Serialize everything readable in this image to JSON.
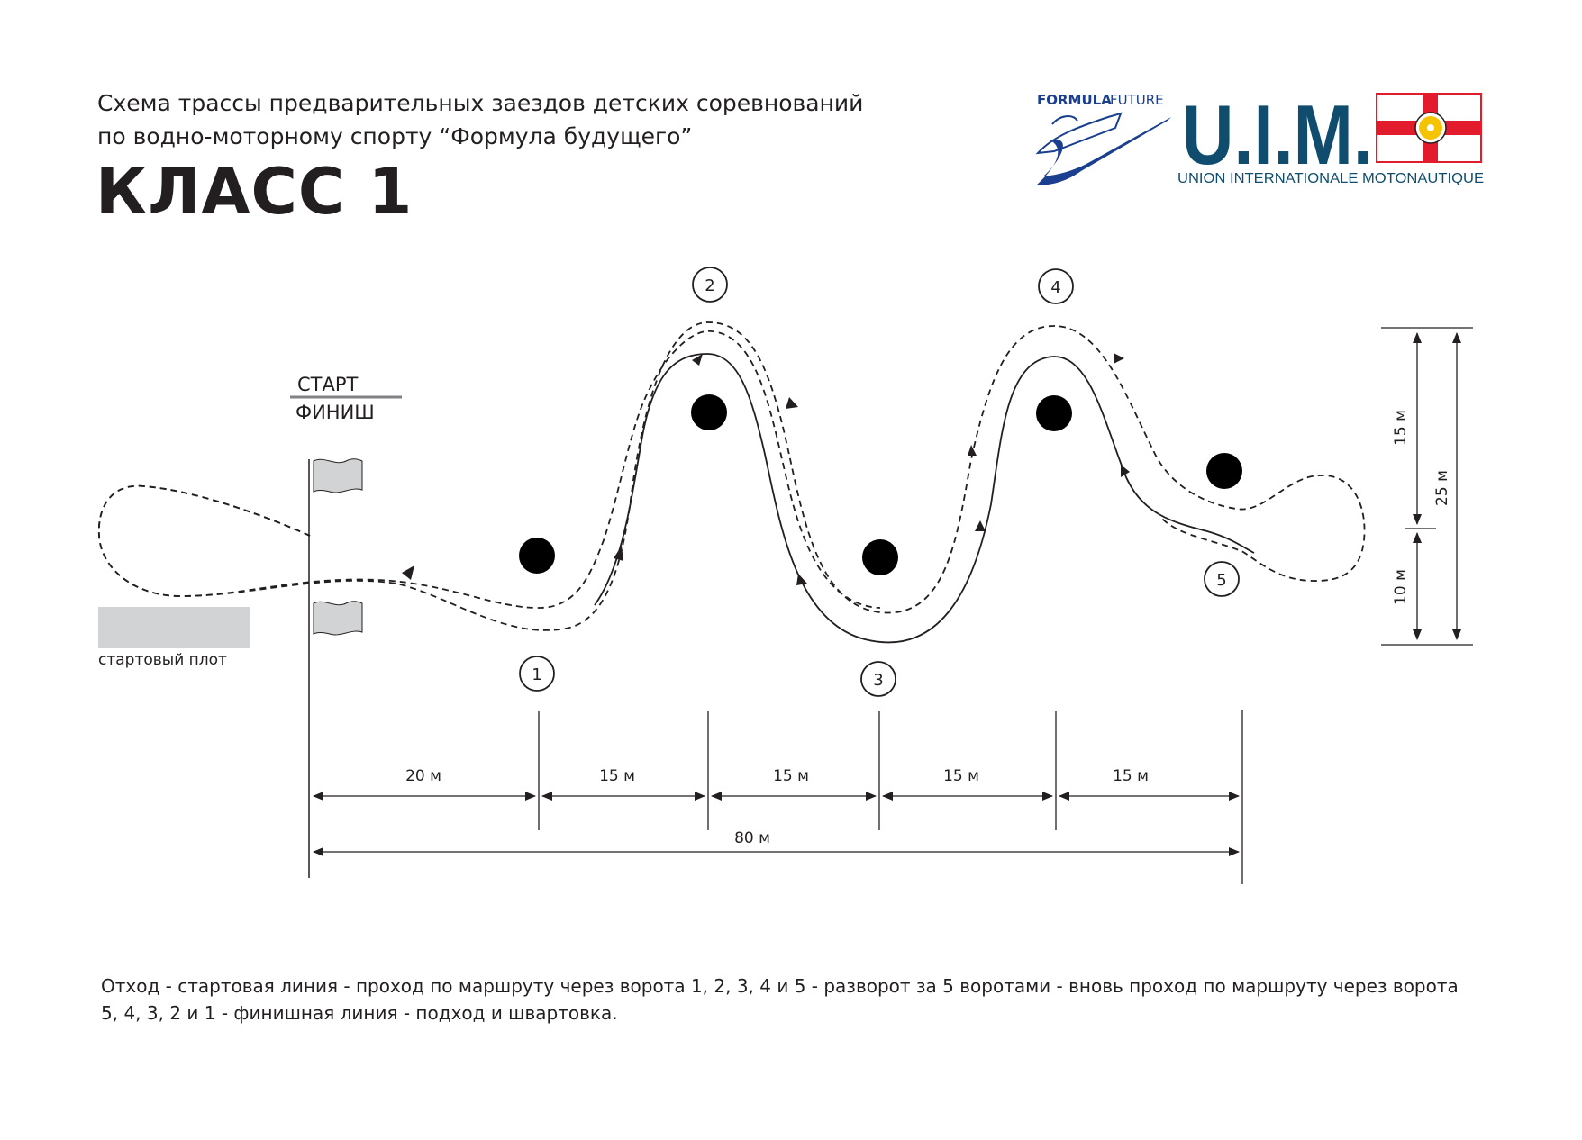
{
  "title": {
    "line1": "Схема трассы предварительных заездов детских соревнований",
    "line2": "по водно-моторному спорту  “Формула будущего”"
  },
  "class_heading": "КЛАСС  1",
  "logos": {
    "formula_future": {
      "word1": "FORMULA",
      "word2": "FUTURE",
      "color1": "#1a3f8f",
      "color2": "#1a3f8f"
    },
    "uim": {
      "letters": "U.I.M.",
      "subtitle": "UNION INTERNATIONALE MOTONAUTIQUE",
      "color": "#0f4c6e",
      "flag_red": "#e21b2d",
      "flag_yellow": "#f5c400"
    }
  },
  "start_finish": {
    "start": "СТАРТ",
    "finish": "ФИНИШ"
  },
  "raft_label": "стартовый плот",
  "gates": [
    "1",
    "2",
    "3",
    "4",
    "5"
  ],
  "dimensions": {
    "horizontal": [
      "20 м",
      "15 м",
      "15 м",
      "15 м",
      "15 м"
    ],
    "total": "80 м",
    "vertical_upper": "15 м",
    "vertical_lower": "10 м",
    "vertical_total": "25 м"
  },
  "footer": {
    "line1": "Отход - стартовая линия - проход по маршруту через ворота 1, 2, 3, 4 и 5 - разворот за 5 воротами - вновь проход по маршруту через ворота",
    "line2": "5, 4, 3, 2 и 1 - финишная линия - подход и швартовка."
  },
  "colors": {
    "ink": "#231f20",
    "raft": "#d1d3d4",
    "flag": "#d1d3d4"
  }
}
